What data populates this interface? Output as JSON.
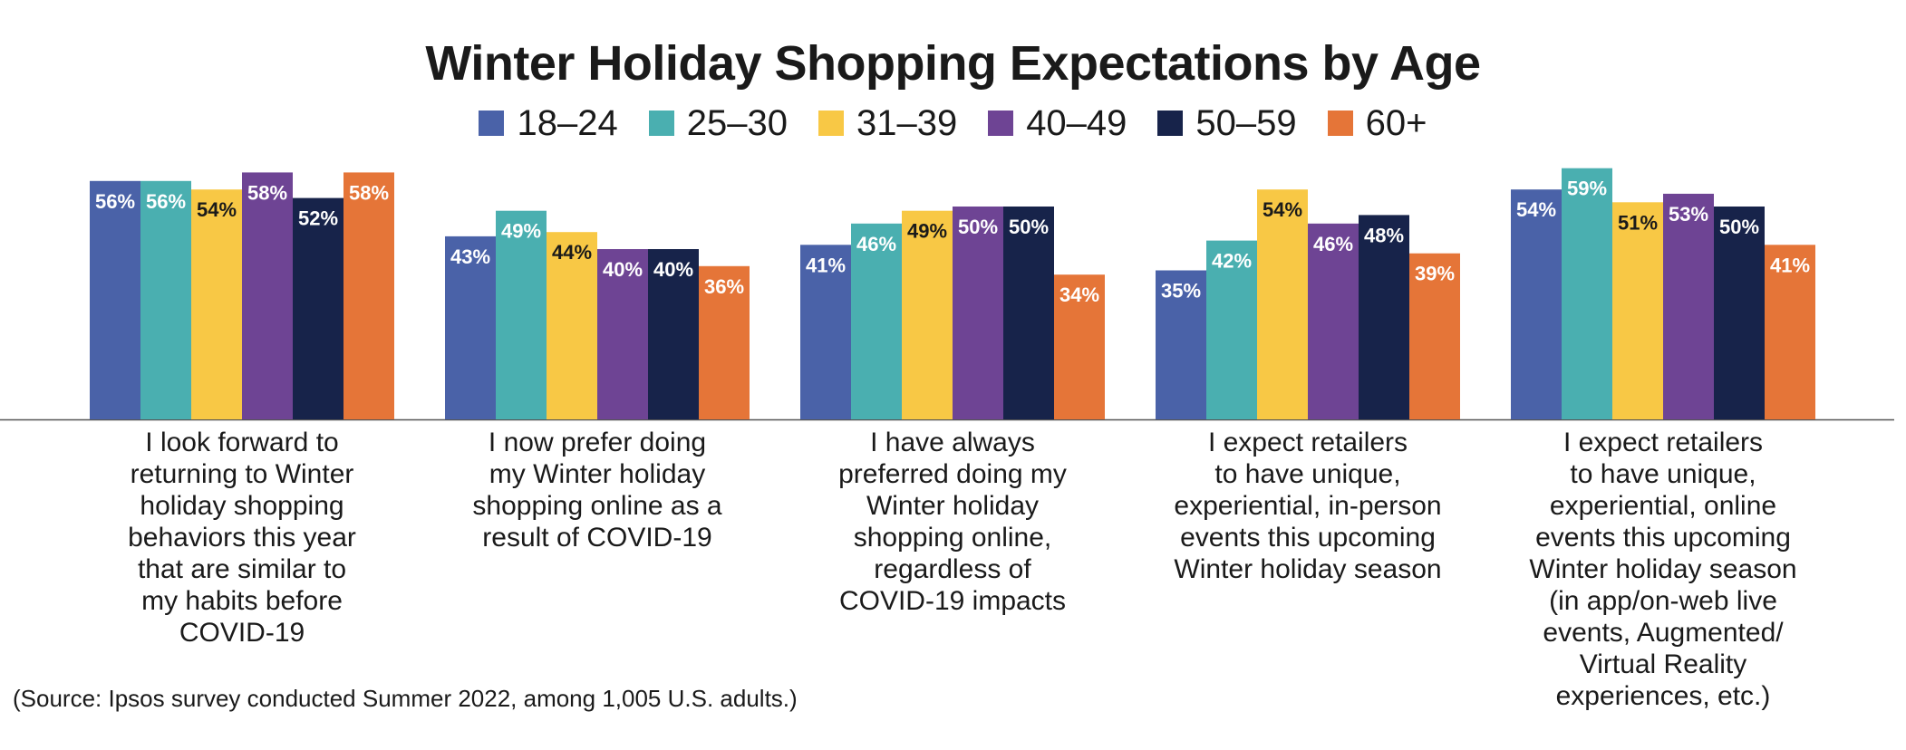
{
  "chart_data": {
    "type": "bar",
    "title": "Winter Holiday Shopping Expectations by Age",
    "xlabel": "",
    "ylabel": "",
    "ylim": [
      0,
      65
    ],
    "grid": false,
    "legend_position": "top-center",
    "categories": [
      "I look forward to\nreturning to Winter\nholiday shopping\nbehaviors this year\nthat are similar to\nmy habits before\nCOVID-19",
      "I now prefer doing\nmy Winter holiday\nshopping online as a\nresult of COVID-19",
      "I have always\npreferred doing my\nWinter holiday\nshopping online,\nregardless of\nCOVID-19 impacts",
      "I expect retailers\nto have unique,\nexperiential, in-person\nevents this upcoming\nWinter holiday season",
      "I expect retailers\nto have unique,\nexperiential, online\nevents this upcoming\nWinter holiday season\n(in app/on-web live\nevents, Augmented/\nVirtual Reality\nexperiences, etc.)"
    ],
    "series": [
      {
        "name": "18–24",
        "color": "#4a62a8",
        "label_color": "#ffffff",
        "values": [
          56,
          43,
          41,
          35,
          54
        ]
      },
      {
        "name": "25–30",
        "color": "#4aafb0",
        "label_color": "#ffffff",
        "values": [
          56,
          49,
          46,
          42,
          59
        ]
      },
      {
        "name": "31–39",
        "color": "#f8c845",
        "label_color": "#1a1a1a",
        "values": [
          54,
          44,
          49,
          54,
          51
        ]
      },
      {
        "name": "40–49",
        "color": "#6e4494",
        "label_color": "#ffffff",
        "values": [
          58,
          40,
          50,
          46,
          53
        ]
      },
      {
        "name": "50–59",
        "color": "#17234a",
        "label_color": "#ffffff",
        "values": [
          52,
          40,
          50,
          48,
          50
        ]
      },
      {
        "name": "60+",
        "color": "#e57538",
        "label_color": "#ffffff",
        "values": [
          58,
          36,
          34,
          39,
          41
        ]
      }
    ],
    "value_suffix": "%"
  },
  "source_note": "(Source: Ipsos survey conducted Summer 2022, among 1,005 U.S. adults.)"
}
